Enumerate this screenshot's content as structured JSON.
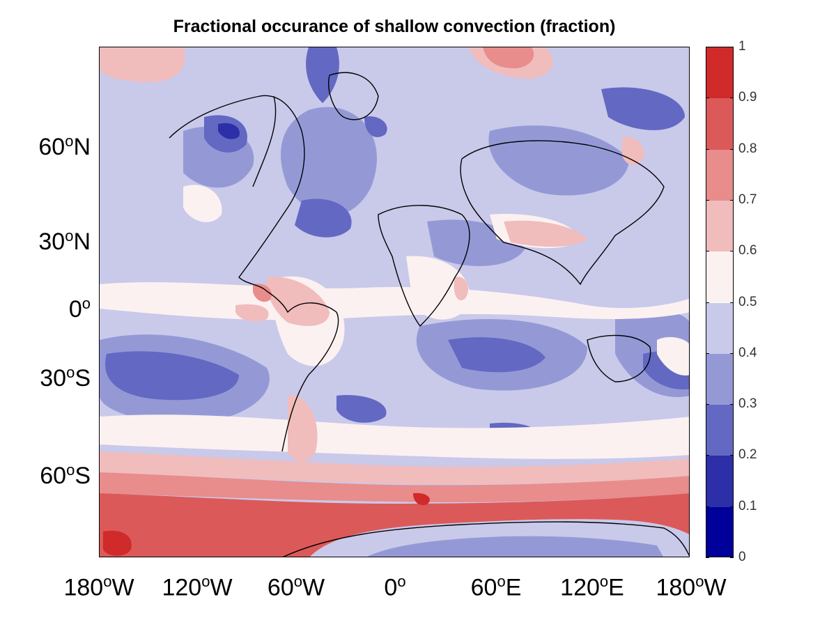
{
  "figure": {
    "title": "Fractional occurance of shallow convection (fraction)"
  },
  "map": {
    "projection": "mercator",
    "lon_range": [
      -180,
      180
    ],
    "lat_range": [
      -82,
      82
    ],
    "lat_ticks": [
      {
        "value": 60,
        "label": "60",
        "suffix": "N"
      },
      {
        "value": 30,
        "label": "30",
        "suffix": "N"
      },
      {
        "value": 0,
        "label": "0",
        "suffix": ""
      },
      {
        "value": -30,
        "label": "30",
        "suffix": "S"
      },
      {
        "value": -60,
        "label": "60",
        "suffix": "S"
      }
    ],
    "lon_ticks": [
      {
        "value": -180,
        "label": "180",
        "suffix": "W"
      },
      {
        "value": -120,
        "label": "120",
        "suffix": "W"
      },
      {
        "value": -60,
        "label": "60",
        "suffix": "W"
      },
      {
        "value": 0,
        "label": "0",
        "suffix": ""
      },
      {
        "value": 60,
        "label": "60",
        "suffix": "E"
      },
      {
        "value": 120,
        "label": "120",
        "suffix": "E"
      },
      {
        "value": 180,
        "label": "180",
        "suffix": "W"
      }
    ],
    "degree_symbol": "o"
  },
  "colorbar": {
    "ticks": [
      "0",
      "0.1",
      "0.2",
      "0.3",
      "0.4",
      "0.5",
      "0.6",
      "0.7",
      "0.8",
      "0.9",
      "1"
    ],
    "levels": [
      {
        "from": 0.0,
        "to": 0.1,
        "color": "#00009a"
      },
      {
        "from": 0.1,
        "to": 0.2,
        "color": "#2d2fa8"
      },
      {
        "from": 0.2,
        "to": 0.3,
        "color": "#6368c3"
      },
      {
        "from": 0.3,
        "to": 0.4,
        "color": "#9499d6"
      },
      {
        "from": 0.4,
        "to": 0.5,
        "color": "#c9c9ea"
      },
      {
        "from": 0.5,
        "to": 0.6,
        "color": "#fcf1f1"
      },
      {
        "from": 0.6,
        "to": 0.7,
        "color": "#f1bcbc"
      },
      {
        "from": 0.7,
        "to": 0.8,
        "color": "#e88c8c"
      },
      {
        "from": 0.8,
        "to": 0.9,
        "color": "#dc5959"
      },
      {
        "from": 0.9,
        "to": 1.0,
        "color": "#d02a2a"
      }
    ]
  }
}
